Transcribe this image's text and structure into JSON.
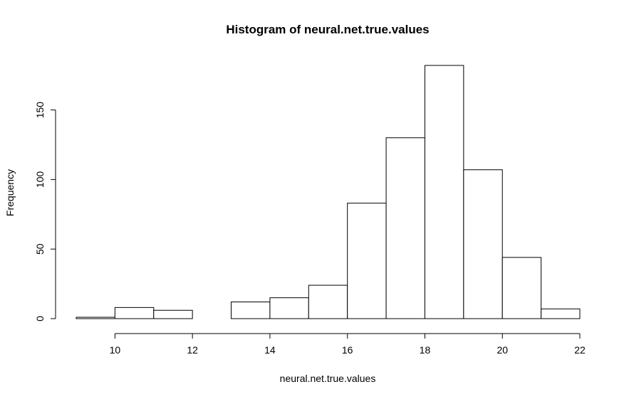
{
  "chart_data": {
    "type": "bar",
    "title": "Histogram of neural.net.true.values",
    "xlabel": "neural.net.true.values",
    "ylabel": "Frequency",
    "bins": [
      {
        "x0": 9,
        "x1": 10,
        "count": 1
      },
      {
        "x0": 10,
        "x1": 11,
        "count": 8
      },
      {
        "x0": 11,
        "x1": 12,
        "count": 6
      },
      {
        "x0": 12,
        "x1": 13,
        "count": 0
      },
      {
        "x0": 13,
        "x1": 14,
        "count": 12
      },
      {
        "x0": 14,
        "x1": 15,
        "count": 15
      },
      {
        "x0": 15,
        "x1": 16,
        "count": 24
      },
      {
        "x0": 16,
        "x1": 17,
        "count": 83
      },
      {
        "x0": 17,
        "x1": 18,
        "count": 130
      },
      {
        "x0": 18,
        "x1": 19,
        "count": 182
      },
      {
        "x0": 19,
        "x1": 20,
        "count": 107
      },
      {
        "x0": 20,
        "x1": 21,
        "count": 44
      },
      {
        "x0": 21,
        "x1": 22,
        "count": 7
      }
    ],
    "xticks": [
      10,
      12,
      14,
      16,
      18,
      20,
      22
    ],
    "yticks": [
      0,
      50,
      100,
      150
    ],
    "xlim": [
      9,
      22
    ],
    "ylim": [
      0,
      182
    ],
    "grid": false,
    "legend": "none",
    "colors": {
      "bar_fill": "#ffffff",
      "bar_stroke": "#000000"
    }
  }
}
